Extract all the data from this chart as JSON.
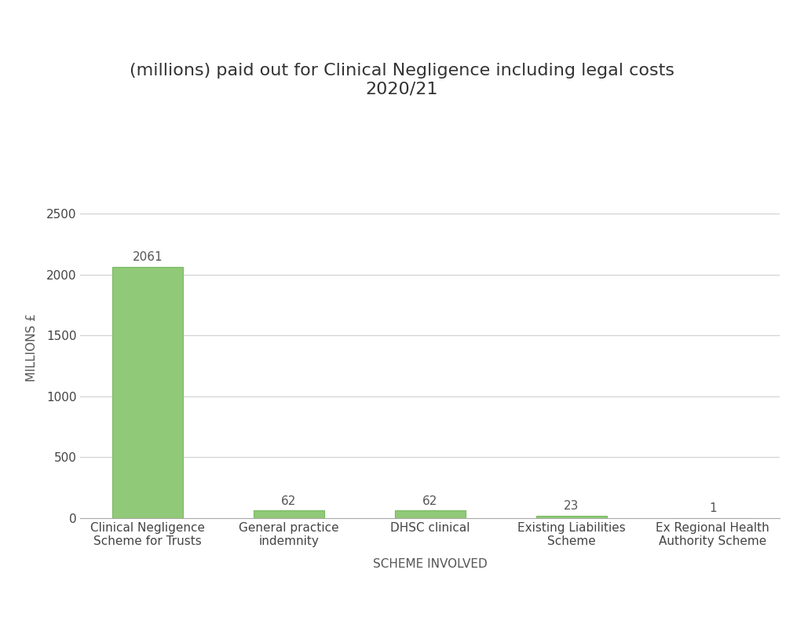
{
  "title_line1": "(millions) paid out for Clinical Negligence including legal costs",
  "title_line2": "2020/21",
  "categories": [
    "Clinical Negligence\nScheme for Trusts",
    "General practice\nindemnity",
    "DHSC clinical",
    "Existing Liabilities\nScheme",
    "Ex Regional Health\nAuthority Scheme"
  ],
  "values": [
    2061,
    62,
    62,
    23,
    1
  ],
  "bar_color": "#90c978",
  "bar_edgecolor": "#7ab862",
  "xlabel": "SCHEME INVOLVED",
  "ylabel": "MILLIONS £",
  "ylim": [
    0,
    2800
  ],
  "yticks": [
    0,
    500,
    1000,
    1500,
    2000,
    2500
  ],
  "label_fontsize": 11,
  "title_fontsize": 16,
  "axis_label_fontsize": 11,
  "tick_fontsize": 11,
  "background_color": "#ffffff",
  "grid_color": "#d0d0d0",
  "bar_width": 0.5
}
